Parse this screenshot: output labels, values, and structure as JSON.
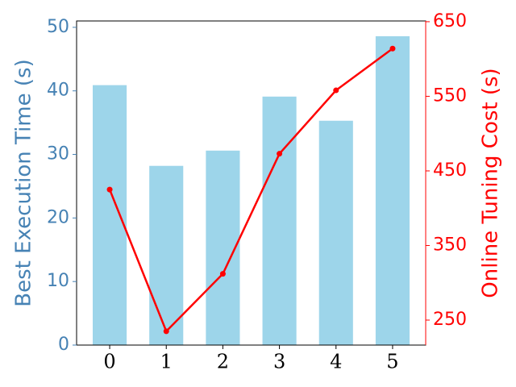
{
  "chart_data": {
    "type": "bar_line",
    "x": [
      0,
      1,
      2,
      3,
      4,
      5
    ],
    "xlim": [
      -0.585,
      5.585
    ],
    "xticks": [
      0,
      1,
      2,
      3,
      4,
      5
    ],
    "ylabel": "Best Execution Time (s)",
    "y2label": "Online Tuning Cost (s)",
    "ylim": [
      0,
      51
    ],
    "yticks": [
      0,
      10,
      20,
      30,
      40,
      50
    ],
    "y2lim": [
      216.5,
      651
    ],
    "y2ticks": [
      250,
      350,
      450,
      550,
      650
    ],
    "ycolor": "#4682b4",
    "y2color": "#ff0000",
    "series": [
      {
        "type": "bar",
        "color": "#9dd5ea",
        "values": [
          40.9,
          28.2,
          30.6,
          39.1,
          35.3,
          48.6
        ]
      },
      {
        "type": "line",
        "axis": "y2",
        "color": "#ff0000",
        "values": [
          425,
          235,
          312,
          473,
          558,
          614
        ]
      }
    ]
  }
}
